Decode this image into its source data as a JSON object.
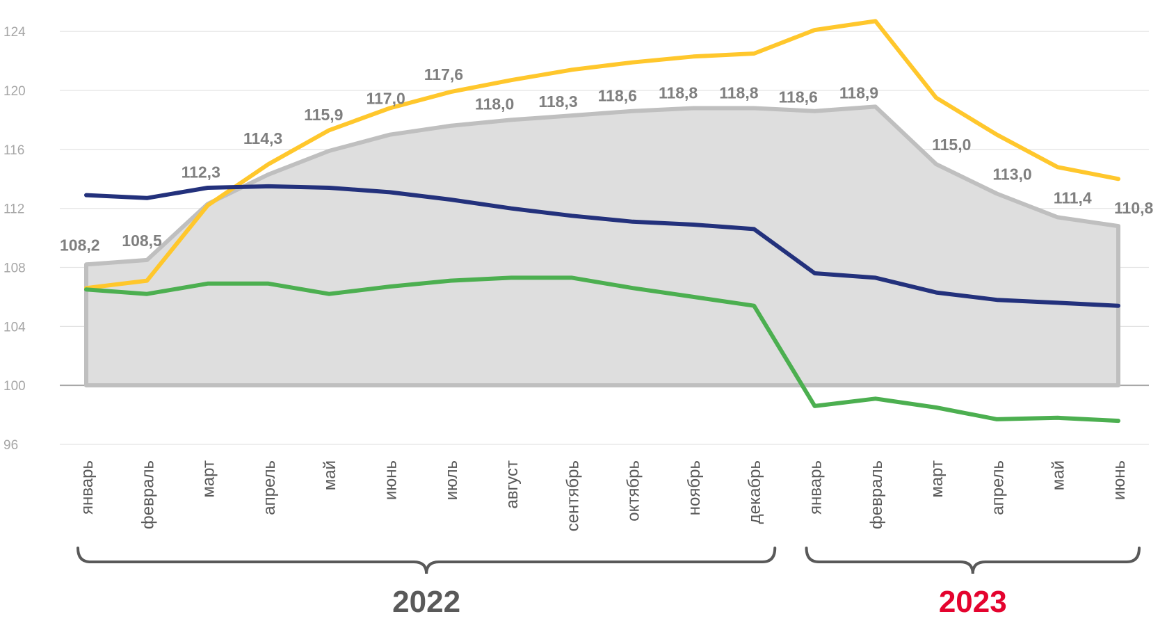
{
  "chart_data": {
    "type": "line",
    "categories": [
      "январь",
      "февраль",
      "март",
      "апрель",
      "май",
      "июнь",
      "июль",
      "август",
      "сентябрь",
      "октябрь",
      "ноябрь",
      "декабрь",
      "январь",
      "февраль",
      "март",
      "апрель",
      "май",
      "июнь"
    ],
    "groups": [
      {
        "label": "2022",
        "start": 0,
        "end": 11,
        "color": "#595959"
      },
      {
        "label": "2023",
        "start": 12,
        "end": 17,
        "color": "#e4032e"
      }
    ],
    "yticks": [
      96,
      100,
      104,
      108,
      112,
      116,
      120,
      124
    ],
    "ylim": [
      96,
      125
    ],
    "baseline": 100,
    "grid": true,
    "series": [
      {
        "color": "#bfbfbf",
        "fill": "#dedede",
        "area": true,
        "labeled": true,
        "values": [
          108.2,
          108.5,
          112.3,
          114.3,
          115.9,
          117.0,
          117.6,
          118.0,
          118.3,
          118.6,
          118.8,
          118.8,
          118.6,
          118.9,
          115.0,
          113.0,
          111.4,
          110.8
        ],
        "labels": [
          "108,2",
          "108,5",
          "112,3",
          "114,3",
          "115,9",
          "117,0",
          "117,6",
          "118,0",
          "118,3",
          "118,6",
          "118,8",
          "118,8",
          "118,6",
          "118,9",
          "115,0",
          "113,0",
          "111,4",
          "110,8"
        ]
      },
      {
        "color": "#ffc72c",
        "values": [
          106.6,
          107.1,
          112.2,
          115.0,
          117.3,
          118.8,
          119.9,
          120.7,
          121.4,
          121.9,
          122.3,
          122.5,
          124.1,
          124.7,
          119.5,
          117.0,
          114.8,
          114.0
        ]
      },
      {
        "color": "#23317c",
        "values": [
          112.9,
          112.7,
          113.4,
          113.5,
          113.4,
          113.1,
          112.6,
          112.0,
          111.5,
          111.1,
          110.9,
          110.6,
          107.6,
          107.3,
          106.3,
          105.8,
          105.6,
          105.4
        ]
      },
      {
        "color": "#4caf50",
        "values": [
          106.5,
          106.2,
          106.9,
          106.9,
          106.2,
          106.7,
          107.1,
          107.3,
          107.3,
          106.6,
          106.0,
          105.4,
          98.6,
          99.1,
          98.5,
          97.7,
          97.8,
          97.6
        ]
      }
    ]
  }
}
